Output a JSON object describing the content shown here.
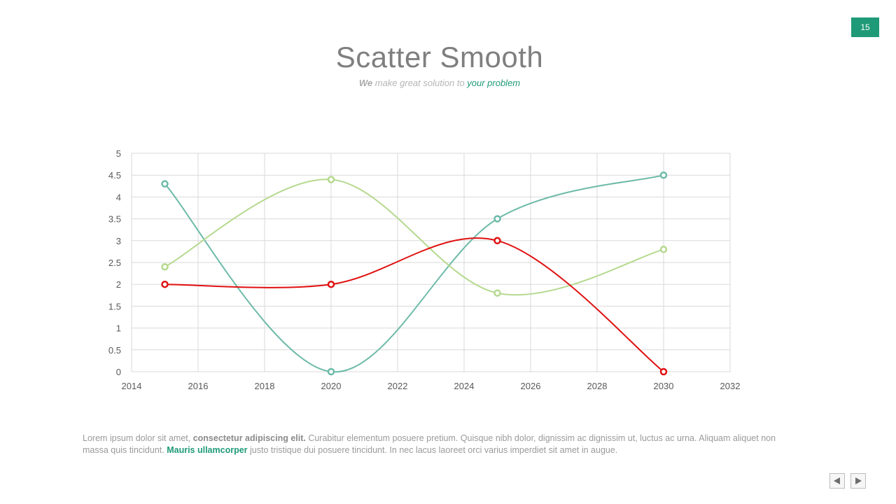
{
  "page_number": "15",
  "header": {
    "title": "Scatter Smooth",
    "subtitle_we": "We",
    "subtitle_mid": " make great solution to ",
    "subtitle_accent": "your problem"
  },
  "footer": {
    "p1": "Lorem ipsum dolor sit amet, ",
    "b1": "consectetur adipiscing elit.",
    "p2": " Curabitur elementum posuere pretium. Quisque nibh dolor, dignissim ac dignissim ut, luctus ac urna. Aliquam aliquet non massa quis tincidunt. ",
    "accent": "Mauris ullamcorper",
    "p3": " justo tristique dui posuere tincidunt. In nec lacus laoreet orci varius imperdiet sit amet in augue."
  },
  "nav": {
    "prev_icon": "triangle-left-icon",
    "next_icon": "triangle-right-icon"
  },
  "chart_data": {
    "type": "scatter",
    "smooth": true,
    "title": "",
    "xlabel": "",
    "ylabel": "",
    "xlim": [
      2014,
      2032
    ],
    "ylim": [
      0,
      5
    ],
    "xticks": [
      "2014",
      "2016",
      "2018",
      "2020",
      "2022",
      "2024",
      "2026",
      "2028",
      "2030",
      "2032"
    ],
    "yticks": [
      "0",
      "0.5",
      "1",
      "1.5",
      "2",
      "2.5",
      "3",
      "3.5",
      "4",
      "4.5",
      "5"
    ],
    "grid": true,
    "legend": "none",
    "series": [
      {
        "color": "#6dbaa8",
        "x": [
          2015,
          2020,
          2025,
          2030
        ],
        "y": [
          4.3,
          0,
          3.5,
          4.5
        ]
      },
      {
        "color": "#b5d98f",
        "x": [
          2015,
          2020,
          2025,
          2030
        ],
        "y": [
          2.4,
          4.4,
          1.8,
          2.8
        ]
      },
      {
        "color": "#e01010",
        "x": [
          2015,
          2020,
          2025,
          2030
        ],
        "y": [
          2,
          2,
          3,
          0
        ]
      }
    ]
  }
}
